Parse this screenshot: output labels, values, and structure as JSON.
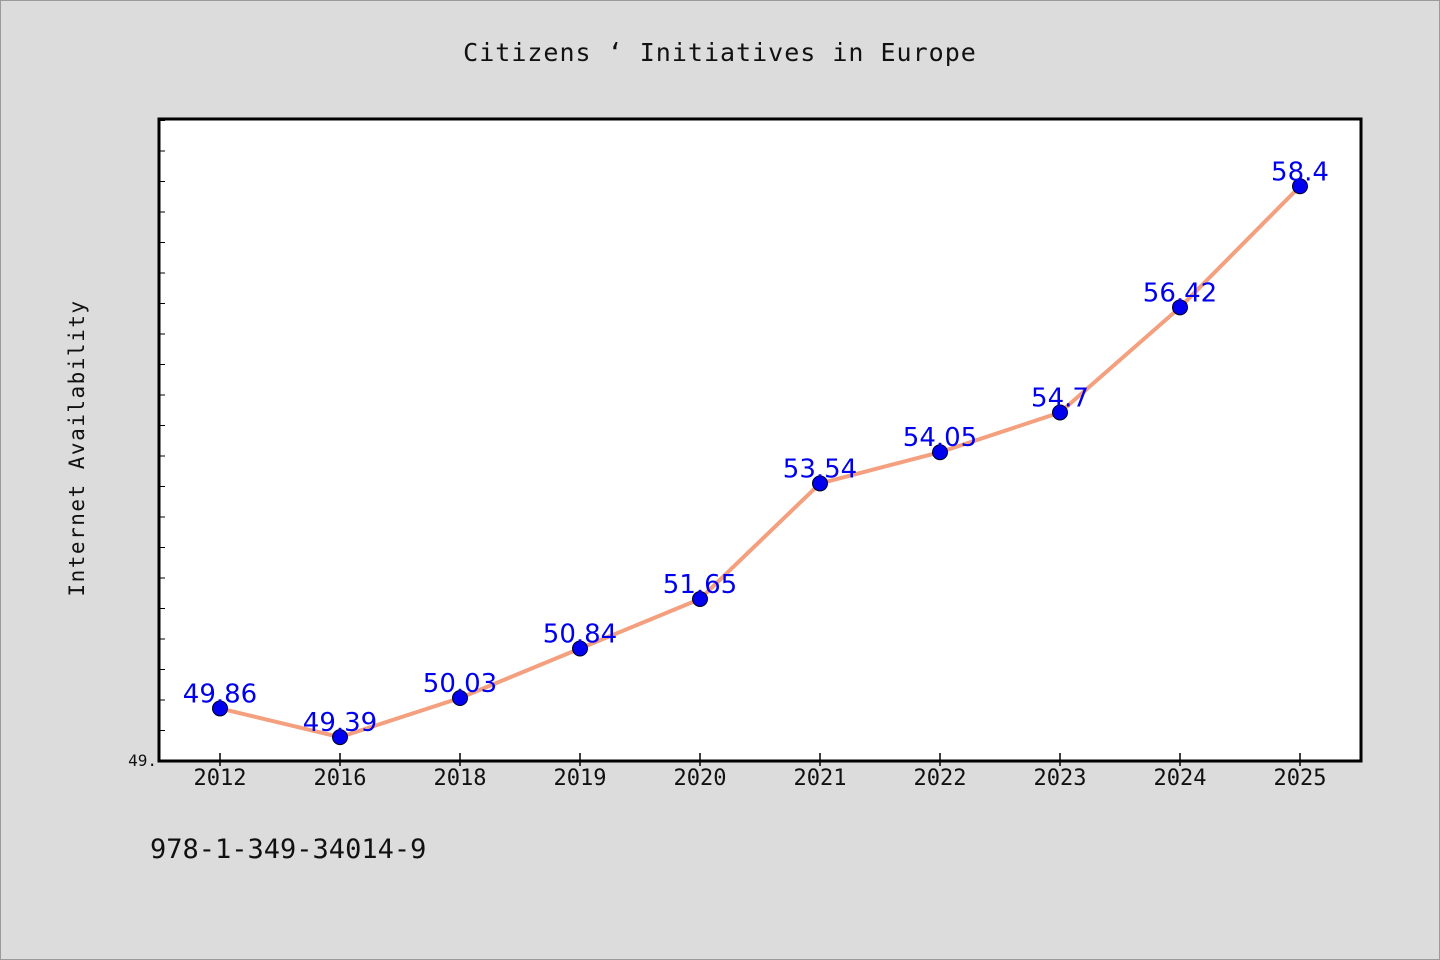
{
  "chart_data": {
    "type": "line",
    "title": "Citizens ‘ Initiatives in Europe",
    "xlabel": "",
    "ylabel": "Internet Availability",
    "categories": [
      "2012",
      "2016",
      "2018",
      "2019",
      "2020",
      "2021",
      "2022",
      "2023",
      "2024",
      "2025"
    ],
    "values": [
      49.86,
      49.39,
      50.03,
      50.84,
      51.65,
      53.54,
      54.05,
      54.7,
      56.42,
      58.4
    ],
    "data_labels": [
      "49.86",
      "49.39",
      "50.03",
      "50.84",
      "51.65",
      "53.54",
      "54.05",
      "54.7",
      "56.42",
      "58.4"
    ],
    "ylim": [
      49.0,
      59.5
    ],
    "y_tick_labels": [
      "49."
    ],
    "grid": false,
    "line_color": "#f4a07f",
    "marker_color": "#0000ee",
    "label_color": "#0000ee"
  },
  "footer": {
    "isbn": "978-1-349-34014-9"
  }
}
